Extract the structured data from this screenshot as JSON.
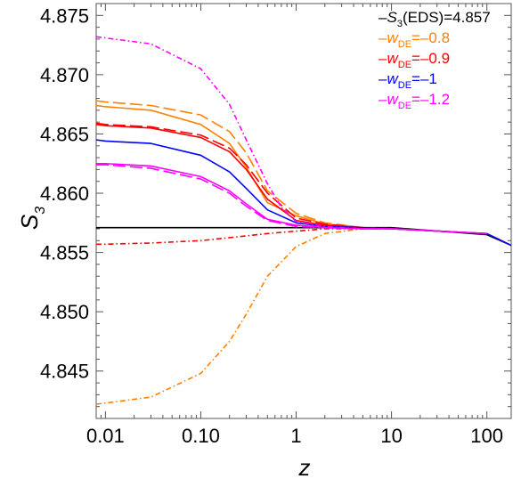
{
  "chart_data": {
    "type": "line",
    "xscale": "log",
    "xlim": [
      0.008,
      180
    ],
    "ylim": [
      4.841,
      4.876
    ],
    "xlabel": "z",
    "ylabel": "S",
    "ylabel_sub": "3",
    "x_ticks": [
      {
        "value": 0.01,
        "label": "0.01"
      },
      {
        "value": 0.1,
        "label": "0.10"
      },
      {
        "value": 1,
        "label": "1"
      },
      {
        "value": 10,
        "label": "10"
      },
      {
        "value": 100,
        "label": "100"
      }
    ],
    "y_ticks": [
      {
        "value": 4.845,
        "label": "4.845"
      },
      {
        "value": 4.85,
        "label": "4.850"
      },
      {
        "value": 4.855,
        "label": "4.855"
      },
      {
        "value": 4.86,
        "label": "4.860"
      },
      {
        "value": 4.865,
        "label": "4.865"
      },
      {
        "value": 4.87,
        "label": "4.870"
      },
      {
        "value": 4.875,
        "label": "4.875"
      }
    ],
    "legend": [
      {
        "dash": "–",
        "prefix": "S",
        "sub": "3",
        "suffix": "(EDS)=4.857",
        "color": "#000000",
        "italic": true
      },
      {
        "dash": "–",
        "prefix": "w",
        "sub": "DE",
        "suffix": "=–0.8",
        "color": "#ff8000",
        "italic": true
      },
      {
        "dash": "–",
        "prefix": "w",
        "sub": "DE",
        "suffix": "=–0.9",
        "color": "#ff0000",
        "italic": true
      },
      {
        "dash": "–",
        "prefix": "w",
        "sub": "DE",
        "suffix": "=–1",
        "color": "#0000ff",
        "italic": true
      },
      {
        "dash": "–",
        "prefix": "w",
        "sub": "DE",
        "suffix": "=–1.2",
        "color": "#ff00ff",
        "italic": true
      }
    ],
    "series": [
      {
        "color": "#000000",
        "style": "solid",
        "x": [
          0.008,
          1,
          10,
          100,
          180
        ],
        "y": [
          4.8571,
          4.8571,
          4.8571,
          4.8565,
          4.8556
        ]
      },
      {
        "color": "#ff8000",
        "style": "solid",
        "x": [
          0.008,
          0.01,
          0.03,
          0.1,
          0.2,
          0.3,
          0.5,
          1,
          2,
          5,
          10,
          100,
          180
        ],
        "y": [
          4.8674,
          4.8673,
          4.867,
          4.8658,
          4.8642,
          4.8622,
          4.8592,
          4.8581,
          4.8574,
          4.8571,
          4.857,
          4.8566,
          4.8556
        ]
      },
      {
        "color": "#ff8000",
        "style": "longdash",
        "x": [
          0.008,
          0.01,
          0.03,
          0.1,
          0.2,
          0.3,
          0.5,
          1,
          2,
          5,
          10
        ],
        "y": [
          4.8678,
          4.8677,
          4.8674,
          4.8666,
          4.8652,
          4.8634,
          4.8602,
          4.8583,
          4.8575,
          4.8571,
          4.857
        ]
      },
      {
        "color": "#ff8000",
        "style": "dashdot",
        "x": [
          0.008,
          0.01,
          0.03,
          0.1,
          0.2,
          0.3,
          0.5,
          1,
          2,
          5,
          10
        ],
        "y": [
          4.8422,
          4.8423,
          4.8428,
          4.8448,
          4.8475,
          4.8498,
          4.853,
          4.8555,
          4.8566,
          4.857,
          4.857
        ]
      },
      {
        "color": "#ff0000",
        "style": "solid",
        "x": [
          0.008,
          0.01,
          0.03,
          0.1,
          0.2,
          0.3,
          0.5,
          1,
          2,
          5,
          10,
          100
        ],
        "y": [
          4.8658,
          4.8657,
          4.8655,
          4.8647,
          4.8635,
          4.862,
          4.8595,
          4.8577,
          4.8573,
          4.8571,
          4.857,
          4.8566
        ]
      },
      {
        "color": "#ff0000",
        "style": "longdash",
        "x": [
          0.008,
          0.01,
          0.03,
          0.1,
          0.2,
          0.3,
          0.5,
          1,
          2,
          5,
          10
        ],
        "y": [
          4.8659,
          4.8658,
          4.8656,
          4.8649,
          4.8638,
          4.8624,
          4.86,
          4.8579,
          4.8574,
          4.8571,
          4.857
        ]
      },
      {
        "color": "#ff0000",
        "style": "dashdot",
        "x": [
          0.008,
          0.01,
          0.03,
          0.1,
          0.3,
          0.5,
          1,
          2,
          5,
          10
        ],
        "y": [
          4.8557,
          4.8557,
          4.8558,
          4.856,
          4.8564,
          4.8566,
          4.8568,
          4.857,
          4.857,
          4.857
        ]
      },
      {
        "color": "#0000ff",
        "style": "solid",
        "x": [
          0.008,
          0.01,
          0.03,
          0.1,
          0.2,
          0.3,
          0.5,
          1,
          2,
          5,
          10,
          100,
          180
        ],
        "y": [
          4.8645,
          4.8644,
          4.8642,
          4.8632,
          4.8618,
          4.8604,
          4.8586,
          4.8575,
          4.8572,
          4.8571,
          4.857,
          4.8566,
          4.8556
        ]
      },
      {
        "color": "#ff00ff",
        "style": "solid",
        "x": [
          0.008,
          0.01,
          0.03,
          0.1,
          0.2,
          0.3,
          0.5,
          1,
          2,
          5,
          10,
          100
        ],
        "y": [
          4.8625,
          4.8625,
          4.8623,
          4.8614,
          4.8602,
          4.8591,
          4.8578,
          4.8573,
          4.8571,
          4.857,
          4.857,
          4.8566
        ]
      },
      {
        "color": "#ff00ff",
        "style": "longdash",
        "x": [
          0.008,
          0.01,
          0.03,
          0.1,
          0.2,
          0.3,
          0.5,
          1,
          2,
          5,
          10
        ],
        "y": [
          4.8624,
          4.8624,
          4.8621,
          4.8612,
          4.86,
          4.8589,
          4.8577,
          4.8572,
          4.8571,
          4.857,
          4.857
        ]
      },
      {
        "color": "#ff00ff",
        "style": "dashdot",
        "x": [
          0.008,
          0.01,
          0.03,
          0.1,
          0.2,
          0.3,
          0.5,
          0.7,
          1,
          2,
          5,
          10
        ],
        "y": [
          4.8732,
          4.8731,
          4.8726,
          4.8705,
          4.8675,
          4.8645,
          4.8608,
          4.8588,
          4.8576,
          4.8572,
          4.857,
          4.857
        ]
      }
    ]
  }
}
